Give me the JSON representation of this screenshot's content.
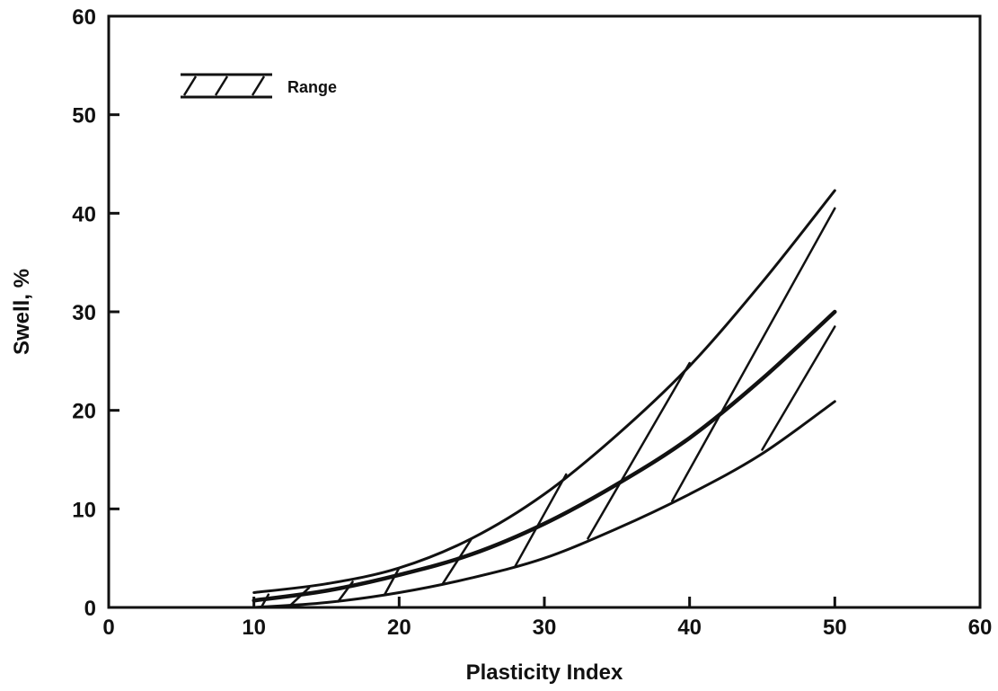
{
  "chart_data": {
    "type": "line",
    "title": "",
    "xlabel": "Plasticity Index",
    "ylabel": "Swell, %",
    "xlim": [
      0,
      60
    ],
    "ylim": [
      0,
      60
    ],
    "x_ticks": [
      "0",
      "10",
      "20",
      "30",
      "40",
      "50",
      "60"
    ],
    "y_ticks": [
      "0",
      "10",
      "20",
      "30",
      "40",
      "50",
      "60"
    ],
    "grid": false,
    "legend": {
      "position": "top-left",
      "entries": [
        "Range"
      ]
    },
    "series": [
      {
        "role": "upper-bound",
        "x": [
          10,
          15,
          20,
          25,
          30,
          35,
          40,
          45,
          50
        ],
        "y": [
          1.5,
          2.4,
          4.0,
          7.0,
          11.5,
          17.5,
          24.5,
          33.0,
          42.3
        ]
      },
      {
        "role": "middle",
        "x": [
          10,
          15,
          20,
          25,
          30,
          35,
          40,
          45,
          50
        ],
        "y": [
          0.7,
          1.7,
          3.3,
          5.4,
          8.5,
          12.5,
          17.2,
          23.2,
          30.0
        ]
      },
      {
        "role": "lower-bound",
        "x": [
          10,
          15,
          20,
          25,
          30,
          35,
          40,
          45,
          50
        ],
        "y": [
          0.0,
          0.5,
          1.5,
          3.0,
          5.0,
          8.0,
          11.5,
          15.6,
          20.9
        ]
      }
    ],
    "hatch_lines": [
      {
        "x1": 10.5,
        "y1": 0.0,
        "x2": 11.0,
        "y2": 1.3
      },
      {
        "x1": 12.5,
        "y1": 0.2,
        "x2": 13.8,
        "y2": 2.0
      },
      {
        "x1": 15.8,
        "y1": 0.6,
        "x2": 16.8,
        "y2": 2.6
      },
      {
        "x1": 19.0,
        "y1": 1.3,
        "x2": 20.0,
        "y2": 4.0
      },
      {
        "x1": 23.0,
        "y1": 2.4,
        "x2": 25.0,
        "y2": 7.0
      },
      {
        "x1": 28.0,
        "y1": 4.2,
        "x2": 31.5,
        "y2": 13.5
      },
      {
        "x1": 33.0,
        "y1": 7.0,
        "x2": 40.0,
        "y2": 24.8
      },
      {
        "x1": 38.8,
        "y1": 10.8,
        "x2": 50.0,
        "y2": 40.5
      },
      {
        "x1": 45.0,
        "y1": 16.0,
        "x2": 50.0,
        "y2": 28.5
      }
    ]
  },
  "legend_label": "Range",
  "x_axis_title": "Plasticity Index",
  "y_axis_title": "Swell, %"
}
